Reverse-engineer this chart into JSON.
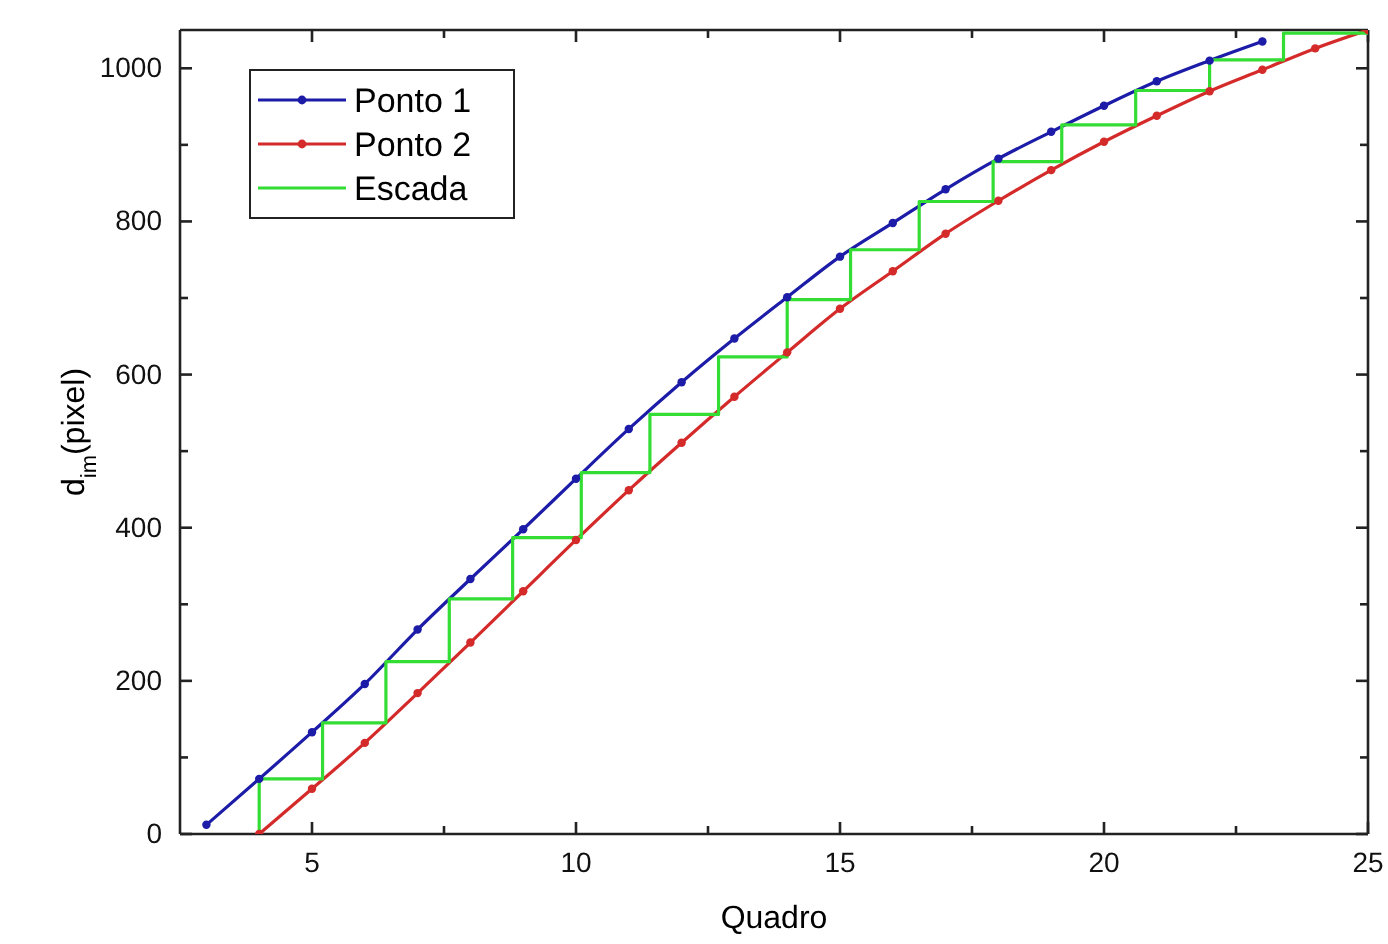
{
  "chart_data": {
    "type": "line",
    "xlabel": "Quadro",
    "ylabel": "d$_{im}$(pixel)",
    "xlim": [
      2.5,
      25
    ],
    "ylim": [
      0,
      1050
    ],
    "xticks": [
      5,
      {
        "value": 7.5,
        "label": null
      },
      10,
      {
        "value": 12.5,
        "label": null
      },
      15,
      {
        "value": 17.5,
        "label": null
      },
      20,
      {
        "value": 22.5,
        "label": null
      },
      25
    ],
    "yticks": [
      0,
      {
        "value": 100,
        "label": null
      },
      200,
      {
        "value": 300,
        "label": null
      },
      400,
      {
        "value": 500,
        "label": null
      },
      600,
      {
        "value": 700,
        "label": null
      },
      800,
      {
        "value": 900,
        "label": null
      },
      1000
    ],
    "grid": false,
    "legend": "top left",
    "series": [
      {
        "name": "Ponto 1",
        "color": "#1c1ca8",
        "marker": "circle",
        "x": [
          3,
          4,
          5,
          6,
          7,
          8,
          9,
          10,
          11,
          12,
          13,
          14,
          15,
          16,
          17,
          18,
          19,
          20,
          21,
          22,
          23
        ],
        "values": [
          12,
          72,
          133,
          196,
          267,
          333,
          398,
          464,
          529,
          590,
          647,
          701,
          754,
          798,
          842,
          882,
          917,
          951,
          983,
          1010,
          1035
        ]
      },
      {
        "name": "Ponto 2",
        "color": "#d42a2a",
        "marker": "circle",
        "x": [
          4,
          5,
          6,
          7,
          8,
          9,
          10,
          11,
          12,
          13,
          14,
          15,
          16,
          17,
          18,
          19,
          20,
          21,
          22,
          23,
          24,
          25
        ],
        "values": [
          0,
          59,
          119,
          184,
          250,
          317,
          384,
          449,
          511,
          571,
          629,
          686,
          735,
          784,
          827,
          867,
          904,
          938,
          970,
          998,
          1026,
          1050
        ]
      },
      {
        "name": "Escada",
        "color": "#33dd33",
        "marker": "none",
        "x": [
          4,
          4,
          5.2,
          5.2,
          6.4,
          6.4,
          7.6,
          7.6,
          8.8,
          8.8,
          10.1,
          10.1,
          11.4,
          11.4,
          12.7,
          12.7,
          14,
          14,
          15.2,
          15.2,
          16.5,
          16.5,
          17.9,
          17.9,
          19.2,
          19.2,
          20.6,
          20.6,
          22,
          22,
          23.4,
          23.4,
          25
        ],
        "values": [
          0,
          72,
          72,
          145,
          145,
          225,
          225,
          307,
          307,
          387,
          387,
          472,
          472,
          548,
          548,
          623,
          623,
          698,
          698,
          763,
          763,
          826,
          826,
          878,
          878,
          926,
          926,
          971,
          971,
          1011,
          1011,
          1046,
          1046
        ]
      }
    ]
  }
}
